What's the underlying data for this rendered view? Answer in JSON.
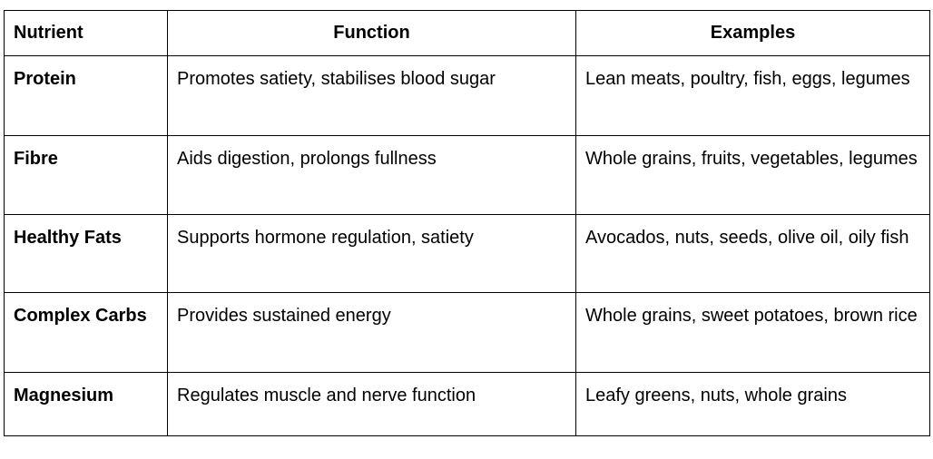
{
  "table": {
    "headers": {
      "nutrient": "Nutrient",
      "function": "Function",
      "examples": "Examples"
    },
    "rows": [
      {
        "nutrient": "Protein",
        "function": "Promotes satiety, stabilises blood sugar",
        "examples": "Lean meats, poultry, fish, eggs, legumes"
      },
      {
        "nutrient": "Fibre",
        "function": "Aids digestion, prolongs fullness",
        "examples": "Whole grains, fruits, vegetables, legumes"
      },
      {
        "nutrient": "Healthy Fats",
        "function": "Supports hormone regulation, satiety",
        "examples": "Avocados, nuts, seeds, olive oil, oily fish"
      },
      {
        "nutrient": "Complex Carbs",
        "function": "Provides sustained energy",
        "examples": "Whole grains, sweet potatoes, brown rice"
      },
      {
        "nutrient": "Magnesium",
        "function": "Regulates muscle and nerve function",
        "examples": "Leafy greens, nuts, whole grains"
      }
    ]
  }
}
